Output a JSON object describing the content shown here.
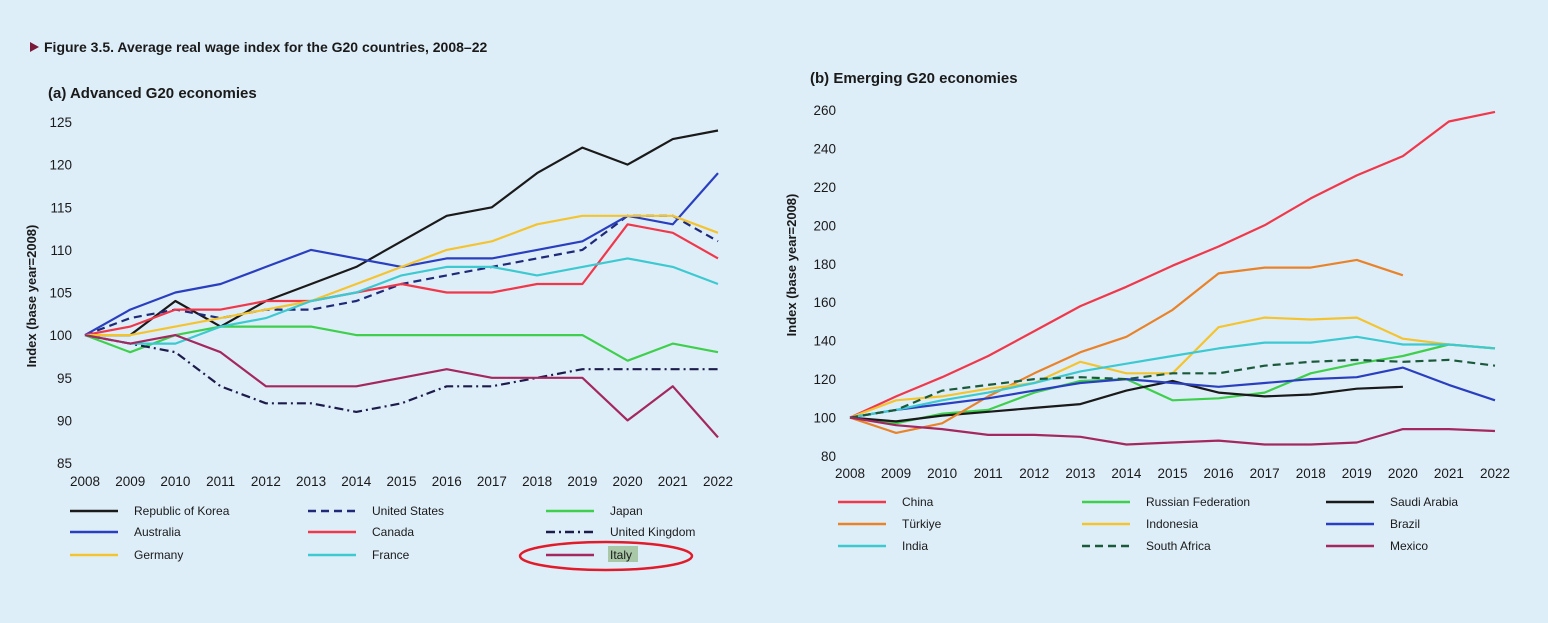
{
  "figure_title": "Figure 3.5.  Average real wage index for the G20 countries, 2008–22",
  "chart_data": [
    {
      "type": "line",
      "title": "(a) Advanced G20 economies",
      "xlabel": "",
      "ylabel": "Index (base year=2008)",
      "x": [
        2008,
        2009,
        2010,
        2011,
        2012,
        2013,
        2014,
        2015,
        2016,
        2017,
        2018,
        2019,
        2020,
        2021,
        2022
      ],
      "ylim": [
        85,
        125
      ],
      "yticks": [
        85,
        90,
        95,
        100,
        105,
        110,
        115,
        120,
        125
      ],
      "grid": false,
      "legend_position": "bottom",
      "series": [
        {
          "name": "Republic of Korea",
          "color": "#1a1a1a",
          "dash": "solid",
          "values": [
            100,
            100,
            104,
            101,
            104,
            106,
            108,
            111,
            114,
            115,
            119,
            122,
            120,
            123,
            124
          ]
        },
        {
          "name": "United States",
          "color": "#1e2a78",
          "dash": "dashed",
          "values": [
            100,
            102,
            103,
            102,
            103,
            103,
            104,
            106,
            107,
            108,
            109,
            110,
            114,
            114,
            111
          ]
        },
        {
          "name": "Japan",
          "color": "#3ecf4c",
          "dash": "solid",
          "values": [
            100,
            98,
            100,
            101,
            101,
            101,
            100,
            100,
            100,
            100,
            100,
            100,
            97,
            99,
            98
          ]
        },
        {
          "name": "Australia",
          "color": "#2a3fbf",
          "dash": "solid",
          "values": [
            100,
            103,
            105,
            106,
            108,
            110,
            109,
            108,
            109,
            109,
            110,
            111,
            114,
            113,
            119
          ]
        },
        {
          "name": "Canada",
          "color": "#f0384b",
          "dash": "solid",
          "values": [
            100,
            101,
            103,
            103,
            104,
            104,
            105,
            106,
            105,
            105,
            106,
            106,
            113,
            112,
            109
          ]
        },
        {
          "name": "United Kingdom",
          "color": "#1c1c4a",
          "dash": "dashdot",
          "values": [
            100,
            99,
            98,
            94,
            92,
            92,
            91,
            92,
            94,
            94,
            95,
            96,
            96,
            96,
            96
          ]
        },
        {
          "name": "Germany",
          "color": "#f4c430",
          "dash": "solid",
          "values": [
            100,
            100,
            101,
            102,
            103,
            104,
            106,
            108,
            110,
            111,
            113,
            114,
            114,
            114,
            112
          ]
        },
        {
          "name": "France",
          "color": "#3cc9d0",
          "dash": "solid",
          "values": [
            100,
            99,
            99,
            101,
            102,
            104,
            105,
            107,
            108,
            108,
            107,
            108,
            109,
            108,
            106
          ]
        },
        {
          "name": "Italy",
          "color": "#a3285f",
          "dash": "solid",
          "values": [
            100,
            99,
            100,
            98,
            94,
            94,
            94,
            95,
            96,
            95,
            95,
            95,
            90,
            94,
            88
          ]
        }
      ],
      "annotation": {
        "type": "ellipse",
        "target": "Italy",
        "color": "#e01b2a"
      }
    },
    {
      "type": "line",
      "title": "(b) Emerging G20 economies",
      "xlabel": "",
      "ylabel": "Index (base year=2008)",
      "x": [
        2008,
        2009,
        2010,
        2011,
        2012,
        2013,
        2014,
        2015,
        2016,
        2017,
        2018,
        2019,
        2020,
        2021,
        2022
      ],
      "ylim": [
        80,
        260
      ],
      "yticks": [
        80,
        100,
        120,
        140,
        160,
        180,
        200,
        220,
        240,
        260
      ],
      "grid": false,
      "legend_position": "bottom",
      "series": [
        {
          "name": "China",
          "color": "#f0384b",
          "dash": "solid",
          "values": [
            100,
            111,
            121,
            132,
            145,
            158,
            168,
            179,
            189,
            200,
            214,
            226,
            236,
            254,
            259
          ]
        },
        {
          "name": "Russian Federation",
          "color": "#3ecf4c",
          "dash": "solid",
          "values": [
            100,
            97,
            102,
            104,
            113,
            119,
            120,
            109,
            110,
            113,
            123,
            128,
            132,
            138,
            136
          ]
        },
        {
          "name": "Saudi Arabia",
          "color": "#1a1a1a",
          "dash": "solid",
          "values": [
            100,
            98,
            101,
            103,
            105,
            107,
            114,
            119,
            113,
            111,
            112,
            115,
            116,
            null,
            null
          ]
        },
        {
          "name": "Türkiye",
          "color": "#e8832a",
          "dash": "solid",
          "values": [
            100,
            92,
            97,
            111,
            123,
            134,
            142,
            156,
            175,
            178,
            178,
            182,
            174,
            null,
            null
          ]
        },
        {
          "name": "Indonesia",
          "color": "#f4c430",
          "dash": "solid",
          "values": [
            100,
            109,
            111,
            115,
            118,
            129,
            123,
            123,
            147,
            152,
            151,
            152,
            141,
            138,
            136
          ]
        },
        {
          "name": "Brazil",
          "color": "#2a3fbf",
          "dash": "solid",
          "values": [
            100,
            104,
            107,
            110,
            114,
            118,
            120,
            118,
            116,
            118,
            120,
            121,
            126,
            117,
            109
          ]
        },
        {
          "name": "India",
          "color": "#3cc9d0",
          "dash": "solid",
          "values": [
            100,
            104,
            109,
            113,
            118,
            124,
            128,
            132,
            136,
            139,
            139,
            142,
            138,
            138,
            136
          ]
        },
        {
          "name": "South Africa",
          "color": "#1a5a3a",
          "dash": "dashed",
          "values": [
            100,
            104,
            114,
            117,
            120,
            121,
            120,
            123,
            123,
            127,
            129,
            130,
            129,
            130,
            127
          ]
        },
        {
          "name": "Mexico",
          "color": "#a3285f",
          "dash": "solid",
          "values": [
            100,
            96,
            94,
            91,
            91,
            90,
            86,
            87,
            88,
            86,
            86,
            87,
            94,
            94,
            93
          ]
        }
      ]
    }
  ],
  "colors": {
    "background": "#deeef9",
    "title_marker": "#7a1a3a",
    "highlight_label": "#a8c8a8"
  }
}
